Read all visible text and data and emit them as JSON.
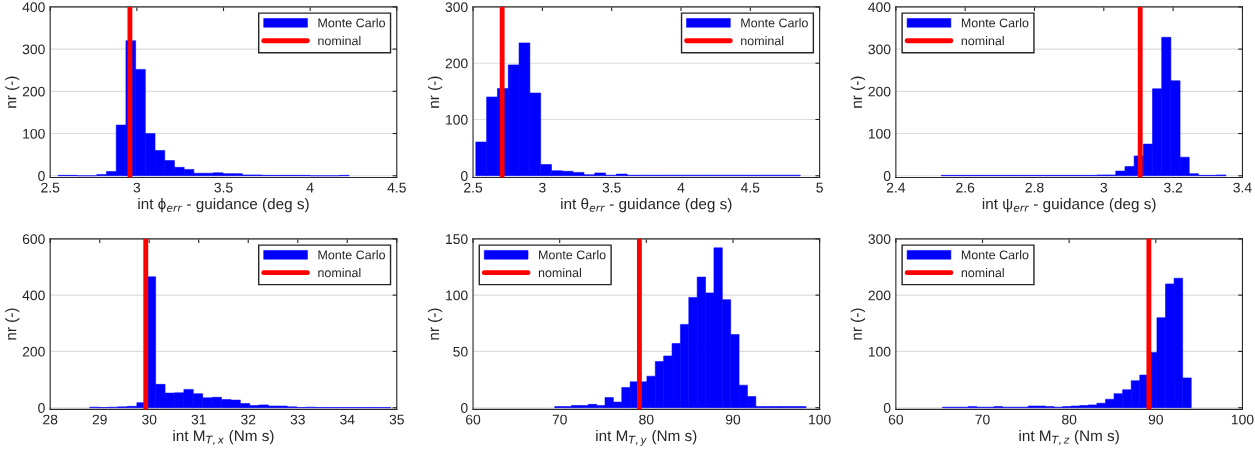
{
  "chart_data": [
    {
      "type": "histogram",
      "xlabel": "int ϕ$_{err}$ - guidance (deg s)",
      "ylabel": "nr (-)",
      "bins": [
        2.545,
        2.601,
        2.657,
        2.713,
        2.769,
        2.825,
        2.881,
        2.937,
        2.993,
        3.049,
        3.105,
        3.161,
        3.217,
        3.273,
        3.329,
        3.385,
        3.441,
        3.497,
        3.553,
        3.609,
        3.665,
        3.721,
        3.777,
        3.833,
        3.889,
        3.945,
        4.001,
        4.057,
        4.113,
        4.169,
        4.225
      ],
      "series": [
        {
          "name": "Monte Carlo",
          "color": "#0000ff",
          "values": [
            1,
            1,
            0,
            0,
            3,
            10,
            120,
            320,
            252,
            100,
            60,
            36,
            20,
            15,
            6,
            6,
            7,
            5,
            5,
            2,
            2,
            1,
            1,
            1,
            1,
            1,
            0,
            0,
            0,
            1
          ]
        },
        {
          "type": "line",
          "name": "nominal",
          "color": "#ff0000",
          "x": [
            2.96,
            2.96
          ],
          "values": [
            0,
            400
          ]
        }
      ],
      "xlim": [
        2.5,
        4.5
      ],
      "xticks": [
        2.5,
        3,
        3.5,
        4,
        4.5
      ],
      "ylim": [
        -4,
        400
      ],
      "yticks": [
        0,
        100,
        200,
        300,
        400
      ],
      "grid": "y",
      "legend": "top right"
    },
    {
      "type": "histogram",
      "xlabel": "int θ$_{err}$ - guidance (deg s)",
      "ylabel": "nr (-)",
      "bins": [
        2.52,
        2.598,
        2.676,
        2.754,
        2.832,
        2.91,
        2.988,
        3.066,
        3.144,
        3.222,
        3.3,
        3.378,
        3.456,
        3.534,
        3.612,
        3.69,
        3.768,
        3.846,
        3.924,
        4.002,
        4.08,
        4.158,
        4.236,
        4.314,
        4.392,
        4.47,
        4.548,
        4.626,
        4.704,
        4.782,
        4.86
      ],
      "series": [
        {
          "name": "Monte Carlo",
          "color": "#0000ff",
          "values": [
            60,
            140,
            155,
            197,
            236,
            147,
            20,
            9,
            8,
            6,
            2,
            5,
            1,
            3,
            1,
            1,
            1,
            1,
            1,
            1,
            1,
            1,
            1,
            1,
            1,
            1,
            1,
            1,
            1,
            1
          ]
        },
        {
          "type": "line",
          "name": "nominal",
          "color": "#ff0000",
          "x": [
            2.71,
            2.71
          ],
          "values": [
            0,
            300
          ]
        }
      ],
      "xlim": [
        2.5,
        5
      ],
      "xticks": [
        2.5,
        3,
        3.5,
        4,
        4.5,
        5
      ],
      "ylim": [
        -3,
        300
      ],
      "yticks": [
        0,
        100,
        200,
        300
      ],
      "grid": "y",
      "legend": "top right"
    },
    {
      "type": "histogram",
      "xlabel": "int ψ$_{err}$ - guidance (deg s)",
      "ylabel": "nr (-)",
      "bins": [
        2.531,
        2.5575,
        2.584,
        2.6105,
        2.637,
        2.6635,
        2.69,
        2.7165,
        2.743,
        2.7695,
        2.796,
        2.8225,
        2.849,
        2.8755,
        2.902,
        2.9285,
        2.955,
        2.9815,
        3.008,
        3.0345,
        3.061,
        3.0875,
        3.114,
        3.1405,
        3.167,
        3.1935,
        3.22,
        3.2465,
        3.273,
        3.2995,
        3.326,
        3.3525
      ],
      "series": [
        {
          "name": "Monte Carlo",
          "color": "#0000ff",
          "values": [
            1,
            1,
            1,
            1,
            1,
            1,
            1,
            1,
            1,
            1,
            1,
            1,
            1,
            1,
            1,
            1,
            1,
            2,
            2,
            11,
            22,
            47,
            75,
            206,
            328,
            225,
            44,
            5,
            1,
            1,
            2
          ]
        },
        {
          "type": "line",
          "name": "nominal",
          "color": "#ff0000",
          "x": [
            3.105,
            3.105
          ],
          "values": [
            0,
            400
          ]
        }
      ],
      "xlim": [
        2.4,
        3.4
      ],
      "xticks": [
        2.4,
        2.6,
        2.8,
        3,
        3.2,
        3.4
      ],
      "ylim": [
        -4,
        400
      ],
      "yticks": [
        0,
        100,
        200,
        300,
        400
      ],
      "grid": "y",
      "legend": "top left"
    },
    {
      "type": "histogram",
      "xlabel": "int M$_{T,x}$ (Nm s)",
      "ylabel": "nr (-)",
      "bins": [
        28.8,
        28.99,
        29.18,
        29.37,
        29.56,
        29.75,
        29.94,
        30.13,
        30.32,
        30.51,
        30.7,
        30.89,
        31.08,
        31.27,
        31.46,
        31.65,
        31.84,
        32.03,
        32.22,
        32.41,
        32.6,
        32.79,
        32.98,
        33.17,
        33.36,
        33.55,
        33.74,
        33.93,
        34.12,
        34.31,
        34.5,
        34.69,
        34.88
      ],
      "series": [
        {
          "name": "Monte Carlo",
          "color": "#0000ff",
          "values": [
            2,
            1,
            2,
            3,
            5,
            18,
            465,
            83,
            52,
            53,
            65,
            50,
            35,
            37,
            29,
            27,
            15,
            8,
            10,
            6,
            6,
            3,
            1,
            2,
            1,
            1,
            1,
            1,
            1,
            1,
            1,
            1
          ]
        },
        {
          "type": "line",
          "name": "nominal",
          "color": "#ff0000",
          "x": [
            29.93,
            29.93
          ],
          "values": [
            0,
            600
          ]
        }
      ],
      "xlim": [
        28,
        35
      ],
      "xticks": [
        28,
        29,
        30,
        31,
        32,
        33,
        34,
        35
      ],
      "ylim": [
        -6,
        600
      ],
      "yticks": [
        0,
        200,
        400,
        600
      ],
      "grid": "y",
      "legend": "top right"
    },
    {
      "type": "histogram",
      "xlabel": "int M$_{T,y}$ (Nm s)",
      "ylabel": "nr (-)",
      "bins": [
        69.43,
        70.397,
        71.364,
        72.331,
        73.298,
        74.265,
        75.232,
        76.199,
        77.166,
        78.133,
        79.1,
        80.067,
        81.034,
        82.001,
        82.968,
        83.935,
        84.902,
        85.869,
        86.836,
        87.803,
        88.77,
        89.737,
        90.704,
        91.671,
        92.638,
        93.605,
        94.572,
        95.539,
        96.506,
        97.473,
        98.44
      ],
      "series": [
        {
          "name": "Monte Carlo",
          "color": "#0000ff",
          "values": [
            1,
            1,
            2,
            2,
            3,
            2,
            9,
            5,
            18,
            23,
            23,
            28,
            41,
            46,
            57,
            74,
            98,
            116,
            102,
            142,
            96,
            65,
            20,
            10,
            1,
            1,
            1,
            1,
            1,
            1
          ]
        },
        {
          "type": "line",
          "name": "nominal",
          "color": "#ff0000",
          "x": [
            79.2,
            79.2
          ],
          "values": [
            0,
            150
          ]
        }
      ],
      "xlim": [
        60,
        100
      ],
      "xticks": [
        60,
        70,
        80,
        90,
        100
      ],
      "ylim": [
        -1.5,
        150
      ],
      "yticks": [
        0,
        50,
        100,
        150
      ],
      "grid": "y",
      "legend": "top left"
    },
    {
      "type": "histogram",
      "xlabel": "int M$_{T,z}$ (Nm s)",
      "ylabel": "nr (-)",
      "bins": [
        65.38,
        66.37,
        67.36,
        68.35,
        69.34,
        70.33,
        71.32,
        72.31,
        73.3,
        74.29,
        75.28,
        76.27,
        77.26,
        78.25,
        79.24,
        80.23,
        81.22,
        82.21,
        83.2,
        84.19,
        85.18,
        86.17,
        87.16,
        88.15,
        89.14,
        90.13,
        91.12,
        92.11,
        93.1,
        94.09
      ],
      "series": [
        {
          "name": "Monte Carlo",
          "color": "#0000ff",
          "values": [
            1,
            1,
            1,
            2,
            1,
            1,
            2,
            1,
            1,
            1,
            3,
            3,
            2,
            1,
            2,
            3,
            4,
            5,
            8,
            15,
            25,
            32,
            48,
            58,
            98,
            160,
            220,
            230,
            53
          ]
        },
        {
          "type": "line",
          "name": "nominal",
          "color": "#ff0000",
          "x": [
            89.2,
            89.2
          ],
          "values": [
            0,
            300
          ]
        }
      ],
      "xlim": [
        60,
        100
      ],
      "xticks": [
        60,
        70,
        80,
        90,
        100
      ],
      "ylim": [
        -3,
        300
      ],
      "yticks": [
        0,
        100,
        200,
        300
      ],
      "grid": "y",
      "legend": "top left"
    }
  ]
}
